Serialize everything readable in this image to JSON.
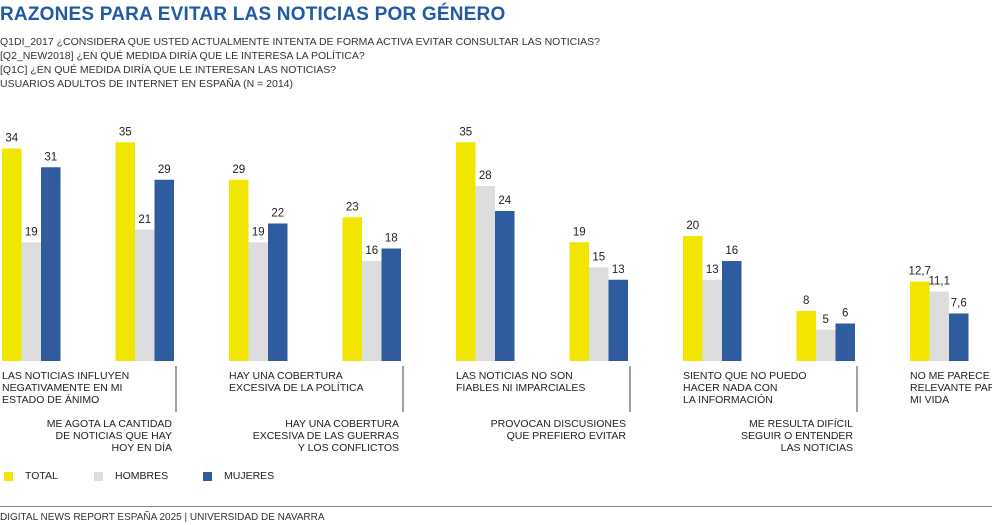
{
  "header": {
    "title": "RAZONES PARA EVITAR LAS NOTICIAS POR GÉNERO",
    "subtitle_lines": [
      "Q1DI_2017 ¿CONSIDERA QUE USTED ACTUALMENTE INTENTA DE FORMA ACTIVA EVITAR CONSULTAR LAS NOTICIAS?",
      "[Q2_NEW2018] ¿EN QUÉ MEDIDA DIRÍA QUE LE INTERESA LA POLÍTICA?",
      "[Q1C] ¿EN QUÉ MEDIDA DIRÍA QUE LE INTERESAN LAS NOTICIAS?",
      "USUARIOS ADULTOS DE INTERNET EN ESPAÑA (N = 2014)"
    ]
  },
  "colors": {
    "total": "#f2e600",
    "hombres": "#dddddd",
    "mujeres": "#2e5c9e",
    "text": "#222222",
    "title": "#1f5aa6"
  },
  "chart_data": {
    "type": "bar",
    "categories": [
      "LAS NOTICIAS INFLUYEN NEGATIVAMENTE EN MI ESTADO DE ÁNIMO",
      "ME AGOTA LA CANTIDAD DE NOTICIAS QUE HAY HOY EN DÍA",
      "HAY UNA COBERTURA EXCESIVA DE LA POLÍTICA",
      "HAY UNA COBERTURA EXCESIVA DE LAS GUERRAS Y LOS CONFLICTOS",
      "LAS NOTICIAS NO SON FIABLES NI IMPARCIALES",
      "PROVOCAN DISCUSIONES QUE PREFIERO EVITAR",
      "SIENTO QUE NO PUEDO HACER NADA CON LA INFORMACIÓN",
      "ME RESULTA DIFÍCIL SEGUIR O ENTENDER LAS NOTICIAS",
      "NO ME PARECE RELEVANTE PARA MI VIDA"
    ],
    "category_label_lines": [
      [
        "LAS NOTICIAS INFLUYEN",
        "NEGATIVAMENTE EN MI",
        "ESTADO DE ÁNIMO"
      ],
      [
        "ME AGOTA LA CANTIDAD",
        "DE NOTICIAS QUE HAY",
        "HOY EN DÍA"
      ],
      [
        "HAY UNA COBERTURA",
        "EXCESIVA DE LA POLÍTICA"
      ],
      [
        "HAY UNA COBERTURA",
        "EXCESIVA DE LAS GUERRAS",
        "Y LOS CONFLICTOS"
      ],
      [
        "LAS NOTICIAS NO SON",
        "FIABLES NI IMPARCIALES"
      ],
      [
        "PROVOCAN DISCUSIONES",
        "QUE PREFIERO EVITAR"
      ],
      [
        "SIENTO QUE NO PUEDO",
        "HACER NADA CON",
        "LA INFORMACIÓN"
      ],
      [
        "ME RESULTA DIFÍCIL",
        "SEGUIR O ENTENDER",
        "LAS NOTICIAS"
      ],
      [
        "NO ME PARECE",
        "RELEVANTE PARA",
        "MI VIDA"
      ]
    ],
    "label_position": [
      "top",
      "bottom",
      "top",
      "bottom",
      "top",
      "bottom",
      "top",
      "bottom",
      "top"
    ],
    "series": [
      {
        "name": "TOTAL",
        "values": [
          34,
          35,
          29,
          23,
          35,
          19,
          20,
          8,
          12.7
        ],
        "labels": [
          "34",
          "35",
          "29",
          "23",
          "35",
          "19",
          "20",
          "8",
          "12,7"
        ]
      },
      {
        "name": "HOMBRES",
        "values": [
          19,
          21,
          19,
          16,
          28,
          15,
          13,
          5,
          11.1
        ],
        "labels": [
          "19",
          "21",
          "19",
          "16",
          "28",
          "15",
          "13",
          "5",
          "11,1"
        ]
      },
      {
        "name": "MUJERES",
        "values": [
          31,
          29,
          22,
          18,
          24,
          13,
          16,
          6,
          7.6
        ],
        "labels": [
          "31",
          "29",
          "22",
          "18",
          "24",
          "13",
          "16",
          "6",
          "7,6"
        ]
      }
    ],
    "ylim": [
      0,
      35
    ],
    "legend_position": "bottom-left",
    "grid": false
  },
  "legend": {
    "items": [
      "TOTAL",
      "HOMBRES",
      "MUJERES"
    ]
  },
  "footer": {
    "text": "DIGITAL NEWS REPORT ESPAÑA 2025 | UNIVERSIDAD DE NAVARRA"
  }
}
